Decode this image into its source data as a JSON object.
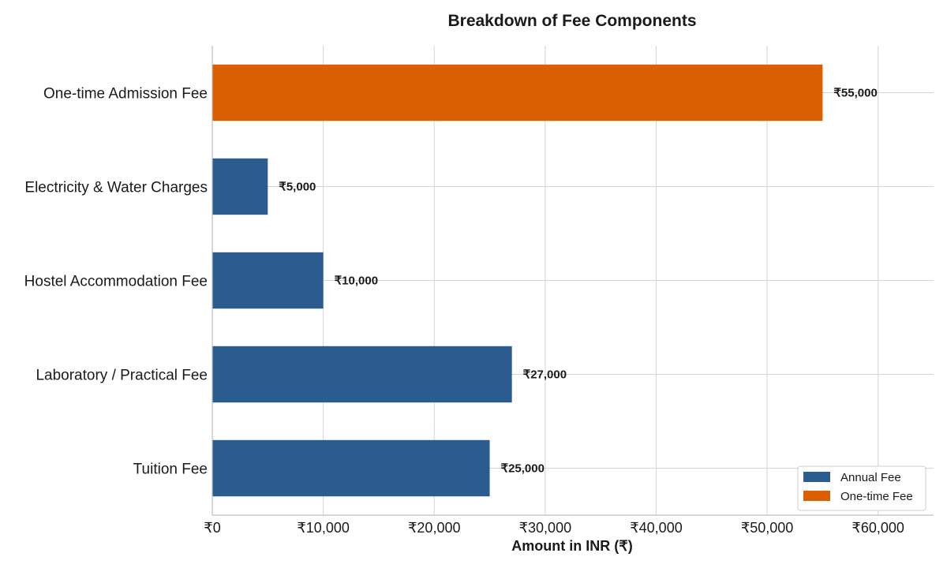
{
  "chart_data": {
    "type": "bar",
    "orientation": "horizontal",
    "title": "Breakdown of Fee Components",
    "xlabel": "Amount in INR (₹)",
    "ylabel": "",
    "xlim": [
      0,
      65000
    ],
    "x_ticks": [
      0,
      10000,
      20000,
      30000,
      40000,
      50000,
      60000
    ],
    "x_tick_labels": [
      "₹0",
      "₹10,000",
      "₹20,000",
      "₹30,000",
      "₹40,000",
      "₹50,000",
      "₹60,000"
    ],
    "grid": true,
    "legend_position": "bottom-right",
    "categories": [
      "Tuition Fee",
      "Laboratory / Practical Fee",
      "Hostel Accommodation Fee",
      "Electricity & Water Charges",
      "One-time Admission Fee"
    ],
    "values": [
      25000,
      27000,
      10000,
      5000,
      55000
    ],
    "value_labels": [
      "₹25,000",
      "₹27,000",
      "₹10,000",
      "₹5,000",
      "₹55,000"
    ],
    "bar_series": [
      "Annual Fee",
      "Annual Fee",
      "Annual Fee",
      "Annual Fee",
      "One-time Fee"
    ],
    "series": [
      {
        "name": "Annual Fee",
        "color": "#2b5c8f"
      },
      {
        "name": "One-time Fee",
        "color": "#d95f02"
      }
    ]
  }
}
